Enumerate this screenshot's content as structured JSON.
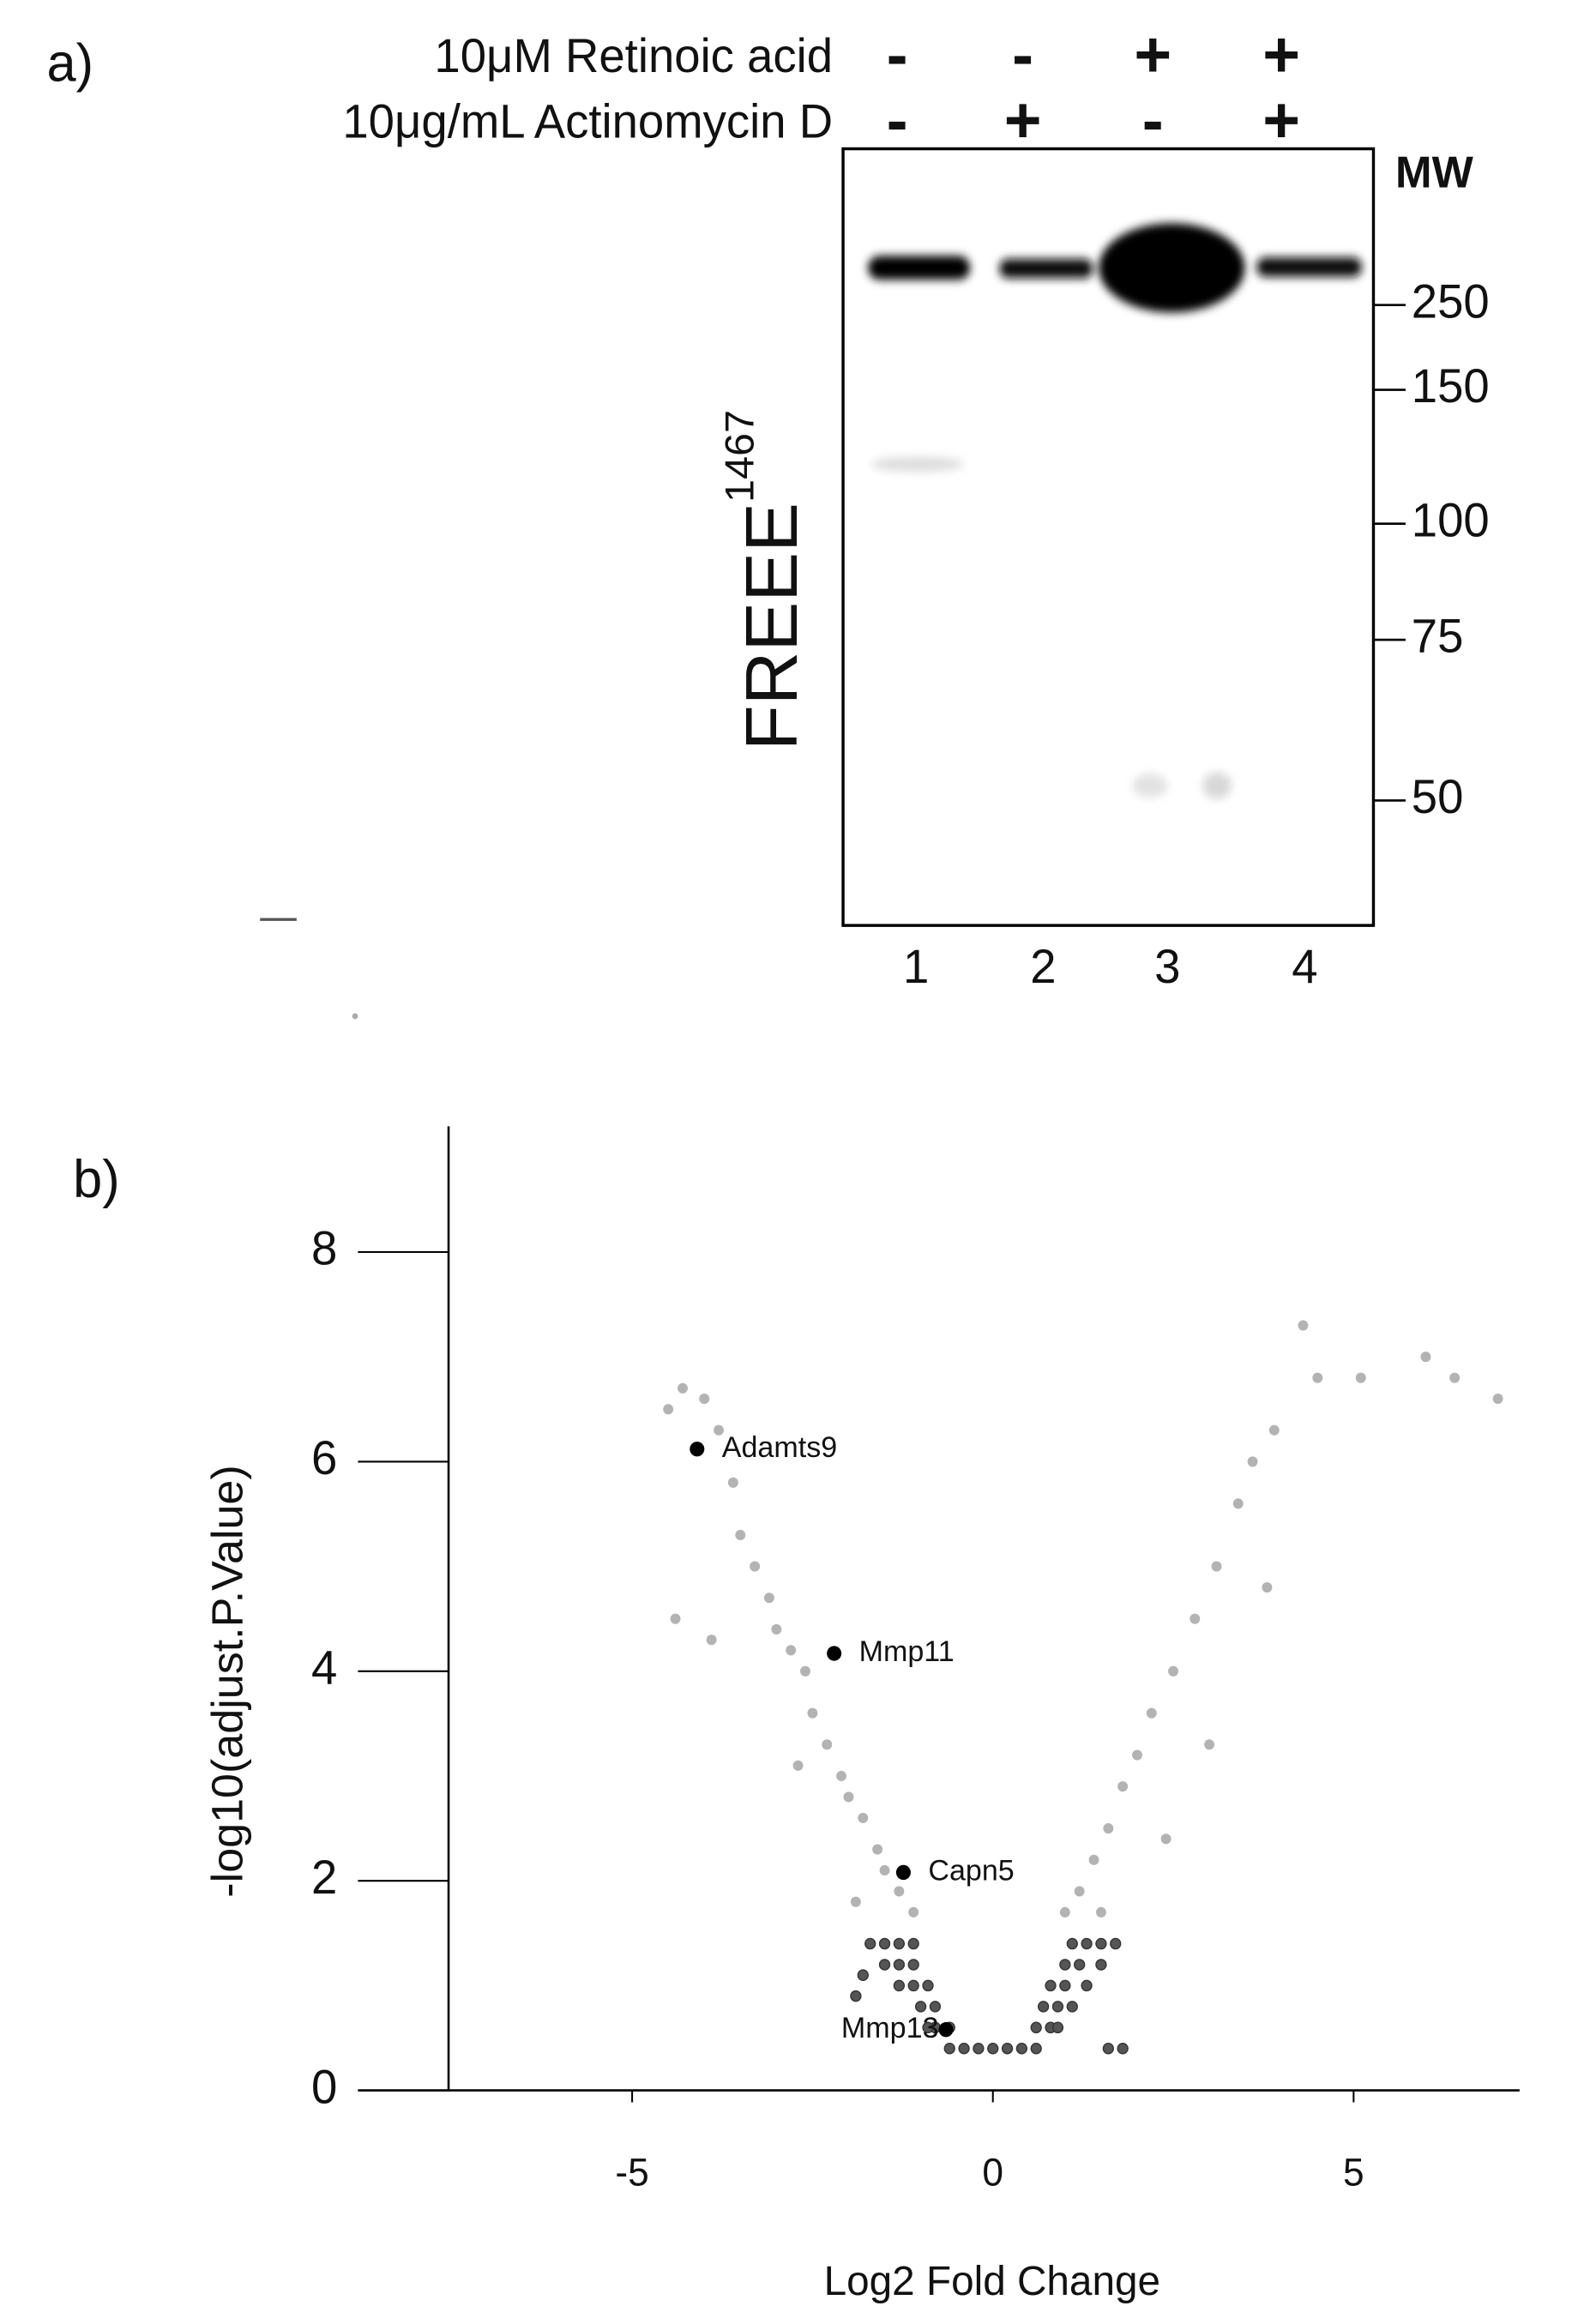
{
  "panel_a": {
    "label": "a)",
    "treatments": [
      {
        "label": "10μM Retinoic acid",
        "signs": [
          "-",
          "-",
          "+",
          "+"
        ]
      },
      {
        "label": "10μg/mL Actinomycin D",
        "signs": [
          "-",
          "+",
          "-",
          "+"
        ]
      }
    ],
    "antibody": "FREEE",
    "antibody_superscript": "1467",
    "mw_title": "MW",
    "mw_markers": [
      250,
      150,
      100,
      75,
      50
    ],
    "lanes": [
      "1",
      "2",
      "3",
      "4"
    ]
  },
  "panel_b": {
    "label": "b)"
  },
  "chart_data": {
    "type": "scatter",
    "x_label": "Log2 Fold Change",
    "y_label": "-log10(adjust.P.Value)",
    "xlim": [
      -8.8,
      7.3
    ],
    "ylim": [
      0,
      9.2
    ],
    "xticks": [
      -5,
      0,
      5
    ],
    "yticks": [
      0,
      2,
      4,
      6,
      8
    ],
    "series": [
      {
        "color": "#b3b3b3",
        "x": [
          -4.5,
          -4.3,
          -4.0,
          -3.8,
          -3.6,
          -3.5,
          -3.3,
          -3.1,
          -3.0,
          -2.8,
          -2.6,
          -2.5,
          -2.3,
          -2.1,
          -2.0,
          -1.8,
          -1.6,
          -1.5,
          -1.3,
          -1.1,
          -4.4,
          -3.9,
          -2.7,
          -1.9,
          1.0,
          1.2,
          1.4,
          1.6,
          1.8,
          2.0,
          2.2,
          2.5,
          2.8,
          3.1,
          3.4,
          3.6,
          3.9,
          4.3,
          5.1,
          6.0,
          6.4,
          7.0,
          4.5,
          3.0,
          3.8,
          1.5,
          2.4
        ],
        "values": [
          6.5,
          6.7,
          6.6,
          6.3,
          5.8,
          5.3,
          5.0,
          4.7,
          4.4,
          4.2,
          4.0,
          3.6,
          3.3,
          3.0,
          2.8,
          2.6,
          2.3,
          2.1,
          1.9,
          1.7,
          4.5,
          4.3,
          3.1,
          1.8,
          1.7,
          1.9,
          2.2,
          2.5,
          2.9,
          3.2,
          3.6,
          4.0,
          4.5,
          5.0,
          5.6,
          6.0,
          6.3,
          7.3,
          6.8,
          7.0,
          6.8,
          6.6,
          6.8,
          3.3,
          4.8,
          1.7,
          2.4
        ]
      },
      {
        "color": "#555555",
        "x": [
          -0.6,
          -0.4,
          -0.2,
          0,
          0.2,
          0.4,
          0.6,
          -0.8,
          -0.6,
          0.6,
          0.8,
          -0.9,
          0.9,
          -1.0,
          -0.8,
          0.7,
          0.9,
          1.1,
          -1.3,
          -1.1,
          -0.9,
          0.8,
          1.0,
          1.3,
          -1.5,
          -1.3,
          -1.1,
          1.0,
          1.2,
          1.5,
          -1.7,
          -1.5,
          -1.3,
          -1.1,
          1.1,
          1.3,
          1.5,
          1.7,
          -1.9,
          1.6,
          1.8,
          -1.8
        ],
        "values": [
          0.4,
          0.4,
          0.4,
          0.4,
          0.4,
          0.4,
          0.4,
          0.6,
          0.6,
          0.6,
          0.6,
          0.6,
          0.6,
          0.8,
          0.8,
          0.8,
          0.8,
          0.8,
          1.0,
          1.0,
          1.0,
          1.0,
          1.0,
          1.0,
          1.2,
          1.2,
          1.2,
          1.2,
          1.2,
          1.2,
          1.4,
          1.4,
          1.4,
          1.4,
          1.4,
          1.4,
          1.4,
          1.4,
          0.9,
          0.4,
          0.4,
          1.1
        ]
      },
      {
        "color": "#000000",
        "labels": [
          "Adamts9",
          "Mmp11",
          "Capn5",
          "Mmp13"
        ],
        "x": [
          -4.1,
          -2.2,
          -1.24,
          -0.65
        ],
        "values": [
          6.12,
          4.17,
          2.08,
          0.58
        ]
      }
    ]
  }
}
